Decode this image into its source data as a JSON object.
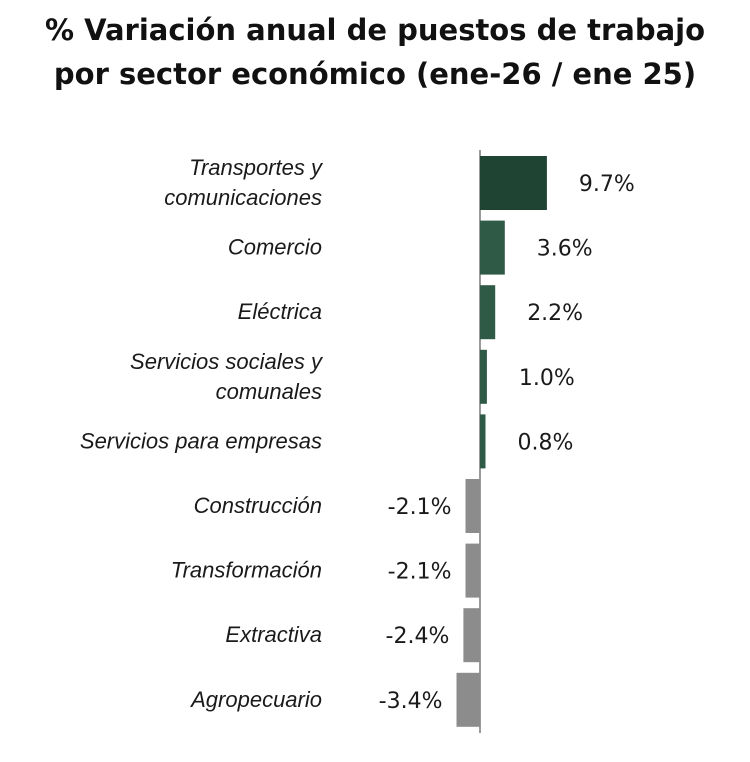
{
  "chart_data": {
    "type": "bar",
    "orientation": "horizontal",
    "title_lines": [
      "% Variación anual de puestos de trabajo",
      "por sector económico (ene-26 / ene 25)"
    ],
    "categories": [
      [
        "Transportes y",
        "comunicaciones"
      ],
      [
        "Comercio"
      ],
      [
        "Eléctrica"
      ],
      [
        "Servicios sociales y",
        "comunales"
      ],
      [
        "Servicios para empresas"
      ],
      [
        "Construcción"
      ],
      [
        "Transformación"
      ],
      [
        "Extractiva"
      ],
      [
        "Agropecuario"
      ]
    ],
    "values": [
      9.7,
      3.6,
      2.2,
      1.0,
      0.8,
      -2.1,
      -2.1,
      -2.4,
      -3.4
    ],
    "value_labels": [
      "9.7%",
      "3.6%",
      "2.2%",
      "1.0%",
      "0.8%",
      "-2.1%",
      "-2.1%",
      "-2.4%",
      "-3.4%"
    ],
    "colors": [
      "#1f4433",
      "#2e5a46",
      "#2e5a46",
      "#2e5a46",
      "#2e5a46",
      "#8c8c8c",
      "#8c8c8c",
      "#8c8c8c",
      "#8c8c8c"
    ],
    "axis_color": "#9a9a9a",
    "xlim": [
      -3.4,
      9.7
    ],
    "grid": false,
    "legend": "none"
  }
}
